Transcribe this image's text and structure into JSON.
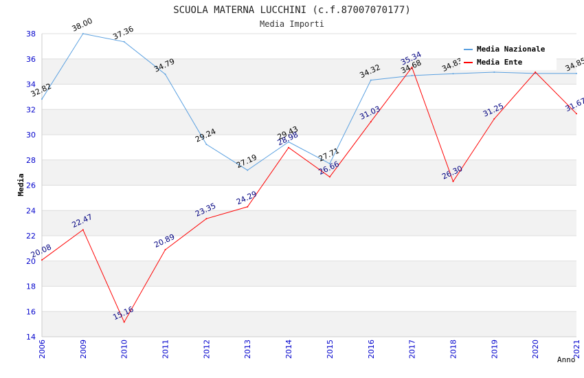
{
  "chart_data": {
    "type": "line",
    "title": "SCUOLA MATERNA LUCCHINI (c.f.87007070177)",
    "subtitle": "Media Importi",
    "xlabel": "Anno",
    "ylabel": "Media",
    "categories": [
      "2006",
      "2009",
      "2010",
      "2011",
      "2012",
      "2013",
      "2014",
      "2015",
      "2016",
      "2017",
      "2018",
      "2019",
      "2020",
      "2021"
    ],
    "ylim": [
      14,
      38
    ],
    "yticks": [
      "14",
      "16",
      "18",
      "20",
      "22",
      "24",
      "26",
      "28",
      "30",
      "32",
      "34",
      "36",
      "38"
    ],
    "legend_position": "top-right",
    "series": [
      {
        "name": "Media Nazionale",
        "color": "#5aa0e0",
        "label_color": "#000000",
        "values": [
          32.82,
          38.0,
          37.36,
          34.79,
          29.24,
          27.19,
          29.43,
          27.71,
          34.32,
          34.68,
          34.83,
          34.95,
          34.85,
          34.85
        ],
        "labels": [
          "32.82",
          "38.00",
          "37.36",
          "34.79",
          "29.24",
          "27.19",
          "29.43",
          "27.71",
          "34.32",
          "34.68",
          "34.83",
          "",
          "",
          "34.85"
        ]
      },
      {
        "name": "Media Ente",
        "color": "#ff0000",
        "label_color": "#000080",
        "values": [
          20.08,
          22.47,
          15.16,
          20.89,
          23.35,
          24.29,
          28.98,
          26.66,
          31.03,
          35.34,
          26.3,
          31.25,
          34.95,
          31.67
        ],
        "labels": [
          "20.08",
          "22.47",
          "15.16",
          "20.89",
          "23.35",
          "24.29",
          "28.98",
          "26.66",
          "31.03",
          "35.34",
          "26.30",
          "31.25",
          "",
          "31.67"
        ]
      }
    ]
  },
  "colors": {
    "band": "#f2f2f2",
    "grid": "#dddddd",
    "axis_tick_text": "#0000cc",
    "title_text": "#222222"
  }
}
